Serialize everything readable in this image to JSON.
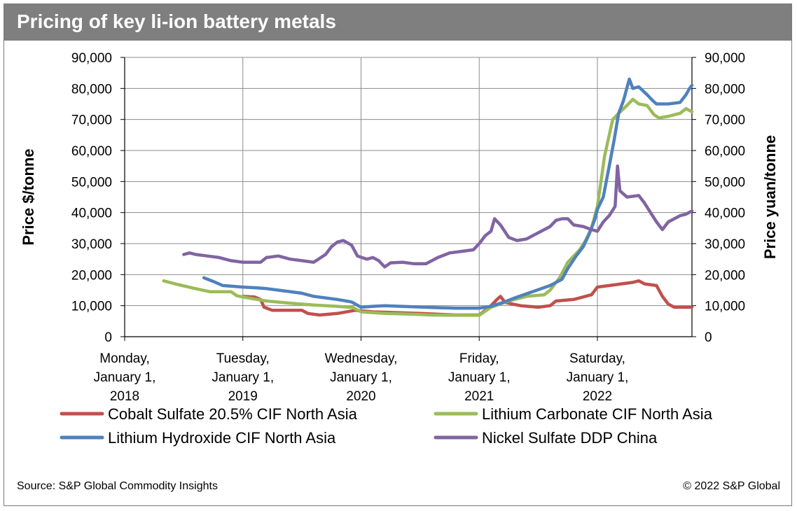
{
  "header": {
    "title": "Pricing of key li-ion battery metals"
  },
  "footer": {
    "source": "Source: S&P Global Commodity Insights",
    "copyright": "© 2022 S&P Global"
  },
  "chart_data": {
    "type": "line",
    "title": "Pricing of key li-ion battery metals",
    "ylabel_left": "Price $/tonne",
    "ylabel_right": "Price yuan/tonne",
    "ylim": [
      0,
      90000
    ],
    "yticks": [
      0,
      10000,
      20000,
      30000,
      40000,
      50000,
      60000,
      70000,
      80000,
      90000
    ],
    "ytick_labels": [
      "0",
      "10,000",
      "20,000",
      "30,000",
      "40,000",
      "50,000",
      "60,000",
      "70,000",
      "80,000",
      "90,000"
    ],
    "xlim": [
      2018.0,
      2022.8
    ],
    "xticks": [
      {
        "x": 2018,
        "lines": [
          "Monday,",
          "January 1,",
          "2018"
        ]
      },
      {
        "x": 2019,
        "lines": [
          "Tuesday,",
          "January 1,",
          "2019"
        ]
      },
      {
        "x": 2020,
        "lines": [
          "Wednesday,",
          "January 1,",
          "2020"
        ]
      },
      {
        "x": 2021,
        "lines": [
          "Friday,",
          "January 1,",
          "2021"
        ]
      },
      {
        "x": 2022,
        "lines": [
          "Saturday,",
          "January 1,",
          "2022"
        ]
      }
    ],
    "series": [
      {
        "name": "Cobalt Sulfate 20.5% CIF North Asia",
        "color": "#c0504d",
        "points": [
          [
            2019.0,
            13000
          ],
          [
            2019.1,
            12800
          ],
          [
            2019.15,
            12000
          ],
          [
            2019.18,
            9500
          ],
          [
            2019.25,
            8500
          ],
          [
            2019.5,
            8500
          ],
          [
            2019.55,
            7500
          ],
          [
            2019.65,
            7000
          ],
          [
            2019.8,
            7500
          ],
          [
            2019.95,
            8500
          ],
          [
            2020.1,
            8000
          ],
          [
            2020.5,
            7500
          ],
          [
            2020.8,
            7000
          ],
          [
            2021.0,
            7000
          ],
          [
            2021.05,
            8500
          ],
          [
            2021.1,
            10000
          ],
          [
            2021.15,
            12000
          ],
          [
            2021.18,
            13000
          ],
          [
            2021.22,
            11000
          ],
          [
            2021.35,
            10000
          ],
          [
            2021.5,
            9500
          ],
          [
            2021.6,
            10000
          ],
          [
            2021.65,
            11500
          ],
          [
            2021.8,
            12000
          ],
          [
            2021.95,
            13500
          ],
          [
            2022.0,
            16000
          ],
          [
            2022.1,
            16500
          ],
          [
            2022.2,
            17000
          ],
          [
            2022.3,
            17500
          ],
          [
            2022.35,
            18000
          ],
          [
            2022.4,
            17000
          ],
          [
            2022.5,
            16500
          ],
          [
            2022.55,
            13000
          ],
          [
            2022.6,
            10500
          ],
          [
            2022.65,
            9500
          ],
          [
            2022.75,
            9500
          ],
          [
            2022.8,
            9500
          ]
        ]
      },
      {
        "name": "Lithium Carbonate CIF North Asia",
        "color": "#9bbb59",
        "points": [
          [
            2018.33,
            18000
          ],
          [
            2018.45,
            16800
          ],
          [
            2018.6,
            15500
          ],
          [
            2018.72,
            14500
          ],
          [
            2018.9,
            14500
          ],
          [
            2018.95,
            13200
          ],
          [
            2019.0,
            12800
          ],
          [
            2019.2,
            11500
          ],
          [
            2019.4,
            10800
          ],
          [
            2019.6,
            10200
          ],
          [
            2019.8,
            9800
          ],
          [
            2019.93,
            9400
          ],
          [
            2020.0,
            8000
          ],
          [
            2020.2,
            7500
          ],
          [
            2020.4,
            7300
          ],
          [
            2020.6,
            7000
          ],
          [
            2020.8,
            6900
          ],
          [
            2021.0,
            6900
          ],
          [
            2021.1,
            9500
          ],
          [
            2021.25,
            11500
          ],
          [
            2021.4,
            13000
          ],
          [
            2021.55,
            13500
          ],
          [
            2021.6,
            15000
          ],
          [
            2021.68,
            19000
          ],
          [
            2021.75,
            24000
          ],
          [
            2021.85,
            28000
          ],
          [
            2021.9,
            31000
          ],
          [
            2021.95,
            35000
          ],
          [
            2022.0,
            42000
          ],
          [
            2022.03,
            50000
          ],
          [
            2022.06,
            58000
          ],
          [
            2022.1,
            65000
          ],
          [
            2022.13,
            70000
          ],
          [
            2022.18,
            72000
          ],
          [
            2022.25,
            74500
          ],
          [
            2022.3,
            76500
          ],
          [
            2022.35,
            75000
          ],
          [
            2022.42,
            74500
          ],
          [
            2022.48,
            71500
          ],
          [
            2022.52,
            70500
          ],
          [
            2022.6,
            71000
          ],
          [
            2022.7,
            72000
          ],
          [
            2022.75,
            73500
          ],
          [
            2022.8,
            72500
          ]
        ]
      },
      {
        "name": "Lithium Hydroxide CIF North Asia",
        "color": "#4f81bd",
        "points": [
          [
            2018.67,
            19000
          ],
          [
            2018.75,
            17800
          ],
          [
            2018.83,
            16500
          ],
          [
            2019.0,
            16000
          ],
          [
            2019.1,
            15800
          ],
          [
            2019.2,
            15500
          ],
          [
            2019.3,
            15000
          ],
          [
            2019.5,
            14000
          ],
          [
            2019.6,
            13000
          ],
          [
            2019.8,
            12000
          ],
          [
            2019.92,
            11200
          ],
          [
            2020.0,
            9500
          ],
          [
            2020.1,
            9800
          ],
          [
            2020.2,
            10000
          ],
          [
            2020.4,
            9700
          ],
          [
            2020.6,
            9400
          ],
          [
            2020.8,
            9200
          ],
          [
            2021.0,
            9200
          ],
          [
            2021.1,
            9800
          ],
          [
            2021.2,
            11000
          ],
          [
            2021.3,
            12500
          ],
          [
            2021.45,
            14500
          ],
          [
            2021.6,
            16500
          ],
          [
            2021.7,
            18500
          ],
          [
            2021.75,
            22000
          ],
          [
            2021.82,
            26000
          ],
          [
            2021.88,
            29000
          ],
          [
            2021.93,
            33000
          ],
          [
            2021.98,
            38000
          ],
          [
            2022.0,
            41000
          ],
          [
            2022.05,
            45000
          ],
          [
            2022.1,
            55000
          ],
          [
            2022.14,
            63000
          ],
          [
            2022.18,
            72000
          ],
          [
            2022.22,
            76000
          ],
          [
            2022.27,
            83000
          ],
          [
            2022.3,
            80000
          ],
          [
            2022.35,
            80500
          ],
          [
            2022.42,
            78000
          ],
          [
            2022.47,
            76000
          ],
          [
            2022.5,
            75000
          ],
          [
            2022.6,
            75000
          ],
          [
            2022.7,
            75500
          ],
          [
            2022.75,
            78000
          ],
          [
            2022.78,
            80000
          ],
          [
            2022.8,
            81000
          ]
        ]
      },
      {
        "name": "Nickel Sulfate DDP China",
        "color": "#8064a2",
        "points": [
          [
            2018.5,
            26500
          ],
          [
            2018.55,
            27000
          ],
          [
            2018.6,
            26500
          ],
          [
            2018.7,
            26000
          ],
          [
            2018.8,
            25500
          ],
          [
            2018.9,
            24500
          ],
          [
            2019.0,
            24000
          ],
          [
            2019.15,
            24000
          ],
          [
            2019.2,
            25500
          ],
          [
            2019.3,
            26000
          ],
          [
            2019.4,
            25000
          ],
          [
            2019.5,
            24500
          ],
          [
            2019.6,
            24000
          ],
          [
            2019.7,
            26500
          ],
          [
            2019.75,
            29000
          ],
          [
            2019.8,
            30500
          ],
          [
            2019.85,
            31000
          ],
          [
            2019.92,
            29500
          ],
          [
            2019.97,
            26000
          ],
          [
            2020.05,
            25000
          ],
          [
            2020.1,
            25500
          ],
          [
            2020.15,
            24500
          ],
          [
            2020.2,
            22500
          ],
          [
            2020.25,
            23800
          ],
          [
            2020.35,
            24000
          ],
          [
            2020.45,
            23500
          ],
          [
            2020.55,
            23500
          ],
          [
            2020.65,
            25500
          ],
          [
            2020.75,
            27000
          ],
          [
            2020.85,
            27500
          ],
          [
            2020.95,
            28000
          ],
          [
            2021.0,
            30000
          ],
          [
            2021.05,
            32500
          ],
          [
            2021.1,
            34000
          ],
          [
            2021.13,
            38000
          ],
          [
            2021.18,
            36000
          ],
          [
            2021.25,
            32000
          ],
          [
            2021.32,
            31000
          ],
          [
            2021.4,
            31500
          ],
          [
            2021.5,
            33500
          ],
          [
            2021.6,
            35500
          ],
          [
            2021.65,
            37500
          ],
          [
            2021.7,
            38000
          ],
          [
            2021.75,
            38000
          ],
          [
            2021.8,
            36000
          ],
          [
            2021.88,
            35500
          ],
          [
            2021.95,
            34500
          ],
          [
            2022.0,
            34000
          ],
          [
            2022.05,
            37000
          ],
          [
            2022.1,
            39000
          ],
          [
            2022.15,
            42000
          ],
          [
            2022.17,
            55000
          ],
          [
            2022.19,
            47000
          ],
          [
            2022.25,
            45000
          ],
          [
            2022.35,
            45500
          ],
          [
            2022.4,
            43000
          ],
          [
            2022.45,
            40000
          ],
          [
            2022.5,
            37000
          ],
          [
            2022.55,
            34500
          ],
          [
            2022.6,
            37000
          ],
          [
            2022.7,
            39000
          ],
          [
            2022.75,
            39500
          ],
          [
            2022.8,
            40500
          ]
        ]
      }
    ],
    "legend": {
      "position": "bottom",
      "columns": 2
    }
  }
}
